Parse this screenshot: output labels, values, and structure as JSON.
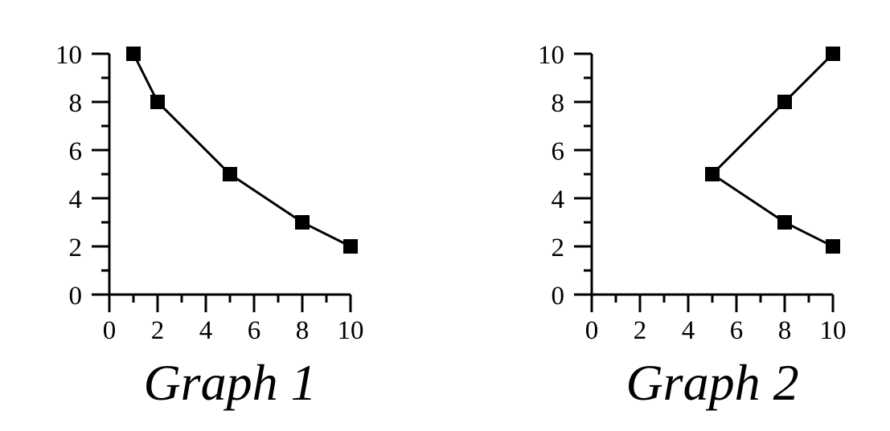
{
  "chart_data": [
    {
      "type": "line",
      "title": "Graph 1",
      "xlim": [
        0,
        10
      ],
      "ylim": [
        0,
        10
      ],
      "x_ticks": [
        "0",
        "2",
        "4",
        "6",
        "8",
        "10"
      ],
      "y_ticks": [
        "0",
        "2",
        "4",
        "6",
        "8",
        "10"
      ],
      "grid": false,
      "marker": "square",
      "color": "#000000",
      "series": [
        {
          "points": [
            [
              1,
              10
            ],
            [
              2,
              8
            ],
            [
              5,
              5
            ],
            [
              8,
              3
            ],
            [
              10,
              2
            ]
          ]
        }
      ]
    },
    {
      "type": "line",
      "title": "Graph 2",
      "xlim": [
        0,
        10
      ],
      "ylim": [
        0,
        10
      ],
      "x_ticks": [
        "0",
        "2",
        "4",
        "6",
        "8",
        "10"
      ],
      "y_ticks": [
        "0",
        "2",
        "4",
        "6",
        "8",
        "10"
      ],
      "grid": false,
      "marker": "square",
      "color": "#000000",
      "series": [
        {
          "points": [
            [
              10,
              10
            ],
            [
              8,
              8
            ],
            [
              5,
              5
            ],
            [
              8,
              3
            ],
            [
              10,
              2
            ]
          ]
        }
      ]
    }
  ]
}
